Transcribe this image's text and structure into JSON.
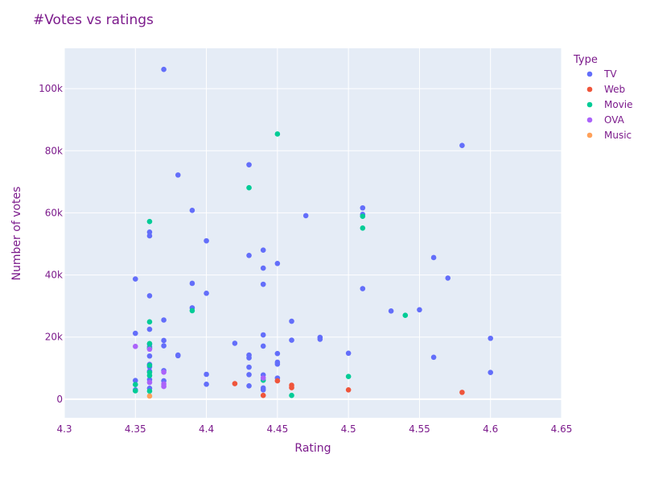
{
  "chart_data": {
    "type": "scatter",
    "title": "#Votes vs ratings",
    "xlabel": "Rating",
    "ylabel": "Number of votes",
    "xlim": [
      4.3,
      4.65
    ],
    "ylim": [
      -6000,
      113000
    ],
    "xticks": [
      4.3,
      4.35,
      4.4,
      4.45,
      4.5,
      4.55,
      4.6,
      4.65
    ],
    "xtick_labels": [
      "4.3",
      "4.35",
      "4.4",
      "4.45",
      "4.5",
      "4.55",
      "4.6",
      "4.65"
    ],
    "yticks": [
      0,
      20000,
      40000,
      60000,
      80000,
      100000
    ],
    "ytick_labels": [
      "0",
      "20k",
      "40k",
      "60k",
      "80k",
      "100k"
    ],
    "grid": true,
    "legend_title": "Type",
    "legend_position": "right",
    "series": [
      {
        "name": "TV",
        "color": "#636efa",
        "points": [
          [
            4.35,
            38700
          ],
          [
            4.35,
            21200
          ],
          [
            4.35,
            6000
          ],
          [
            4.35,
            3000
          ],
          [
            4.36,
            53800
          ],
          [
            4.36,
            52600
          ],
          [
            4.36,
            33300
          ],
          [
            4.36,
            22500
          ],
          [
            4.36,
            17700
          ],
          [
            4.36,
            16900
          ],
          [
            4.36,
            13900
          ],
          [
            4.36,
            11200
          ],
          [
            4.36,
            10400
          ],
          [
            4.36,
            9000
          ],
          [
            4.36,
            6300
          ],
          [
            4.36,
            3500
          ],
          [
            4.37,
            106200
          ],
          [
            4.37,
            25500
          ],
          [
            4.37,
            18900
          ],
          [
            4.37,
            17200
          ],
          [
            4.37,
            9200
          ],
          [
            4.37,
            5900
          ],
          [
            4.38,
            72200
          ],
          [
            4.38,
            14200
          ],
          [
            4.38,
            14000
          ],
          [
            4.39,
            60800
          ],
          [
            4.39,
            37300
          ],
          [
            4.39,
            29400
          ],
          [
            4.4,
            51000
          ],
          [
            4.4,
            34100
          ],
          [
            4.4,
            8000
          ],
          [
            4.4,
            4800
          ],
          [
            4.42,
            18000
          ],
          [
            4.43,
            75500
          ],
          [
            4.43,
            46300
          ],
          [
            4.43,
            14200
          ],
          [
            4.43,
            13300
          ],
          [
            4.43,
            10300
          ],
          [
            4.43,
            7900
          ],
          [
            4.43,
            4300
          ],
          [
            4.44,
            48000
          ],
          [
            4.44,
            42200
          ],
          [
            4.44,
            37000
          ],
          [
            4.44,
            20700
          ],
          [
            4.44,
            17100
          ],
          [
            4.44,
            7800
          ],
          [
            4.44,
            3600
          ],
          [
            4.44,
            3000
          ],
          [
            4.45,
            43700
          ],
          [
            4.45,
            14700
          ],
          [
            4.45,
            11900
          ],
          [
            4.45,
            11300
          ],
          [
            4.45,
            6800
          ],
          [
            4.46,
            25100
          ],
          [
            4.46,
            19000
          ],
          [
            4.47,
            59100
          ],
          [
            4.48,
            19900
          ],
          [
            4.48,
            19300
          ],
          [
            4.5,
            14800
          ],
          [
            4.51,
            61600
          ],
          [
            4.51,
            59500
          ],
          [
            4.51,
            35600
          ],
          [
            4.53,
            28400
          ],
          [
            4.55,
            28800
          ],
          [
            4.56,
            45600
          ],
          [
            4.56,
            13500
          ],
          [
            4.57,
            39000
          ],
          [
            4.58,
            81700
          ],
          [
            4.6,
            19600
          ],
          [
            4.6,
            8600
          ]
        ]
      },
      {
        "name": "Web",
        "color": "#ef553b",
        "points": [
          [
            4.42,
            5000
          ],
          [
            4.44,
            1200
          ],
          [
            4.45,
            5900
          ],
          [
            4.46,
            4500
          ],
          [
            4.46,
            3700
          ],
          [
            4.5,
            3000
          ],
          [
            4.58,
            2200
          ]
        ]
      },
      {
        "name": "Movie",
        "color": "#00cc96",
        "points": [
          [
            4.35,
            4700
          ],
          [
            4.35,
            2700
          ],
          [
            4.36,
            57200
          ],
          [
            4.36,
            24900
          ],
          [
            4.36,
            17900
          ],
          [
            4.36,
            16400
          ],
          [
            4.36,
            10900
          ],
          [
            4.36,
            8600
          ],
          [
            4.36,
            7600
          ],
          [
            4.36,
            2600
          ],
          [
            4.39,
            28500
          ],
          [
            4.43,
            68100
          ],
          [
            4.44,
            6100
          ],
          [
            4.45,
            85400
          ],
          [
            4.46,
            1200
          ],
          [
            4.5,
            7300
          ],
          [
            4.51,
            58900
          ],
          [
            4.51,
            55100
          ],
          [
            4.54,
            27000
          ]
        ]
      },
      {
        "name": "OVA",
        "color": "#ab63fa",
        "points": [
          [
            4.35,
            17000
          ],
          [
            4.36,
            16100
          ],
          [
            4.36,
            5400
          ],
          [
            4.37,
            8700
          ],
          [
            4.37,
            4900
          ],
          [
            4.37,
            4100
          ],
          [
            4.44,
            6800
          ]
        ]
      },
      {
        "name": "Music",
        "color": "#ffa15a",
        "points": [
          [
            4.36,
            1000
          ]
        ]
      }
    ]
  }
}
